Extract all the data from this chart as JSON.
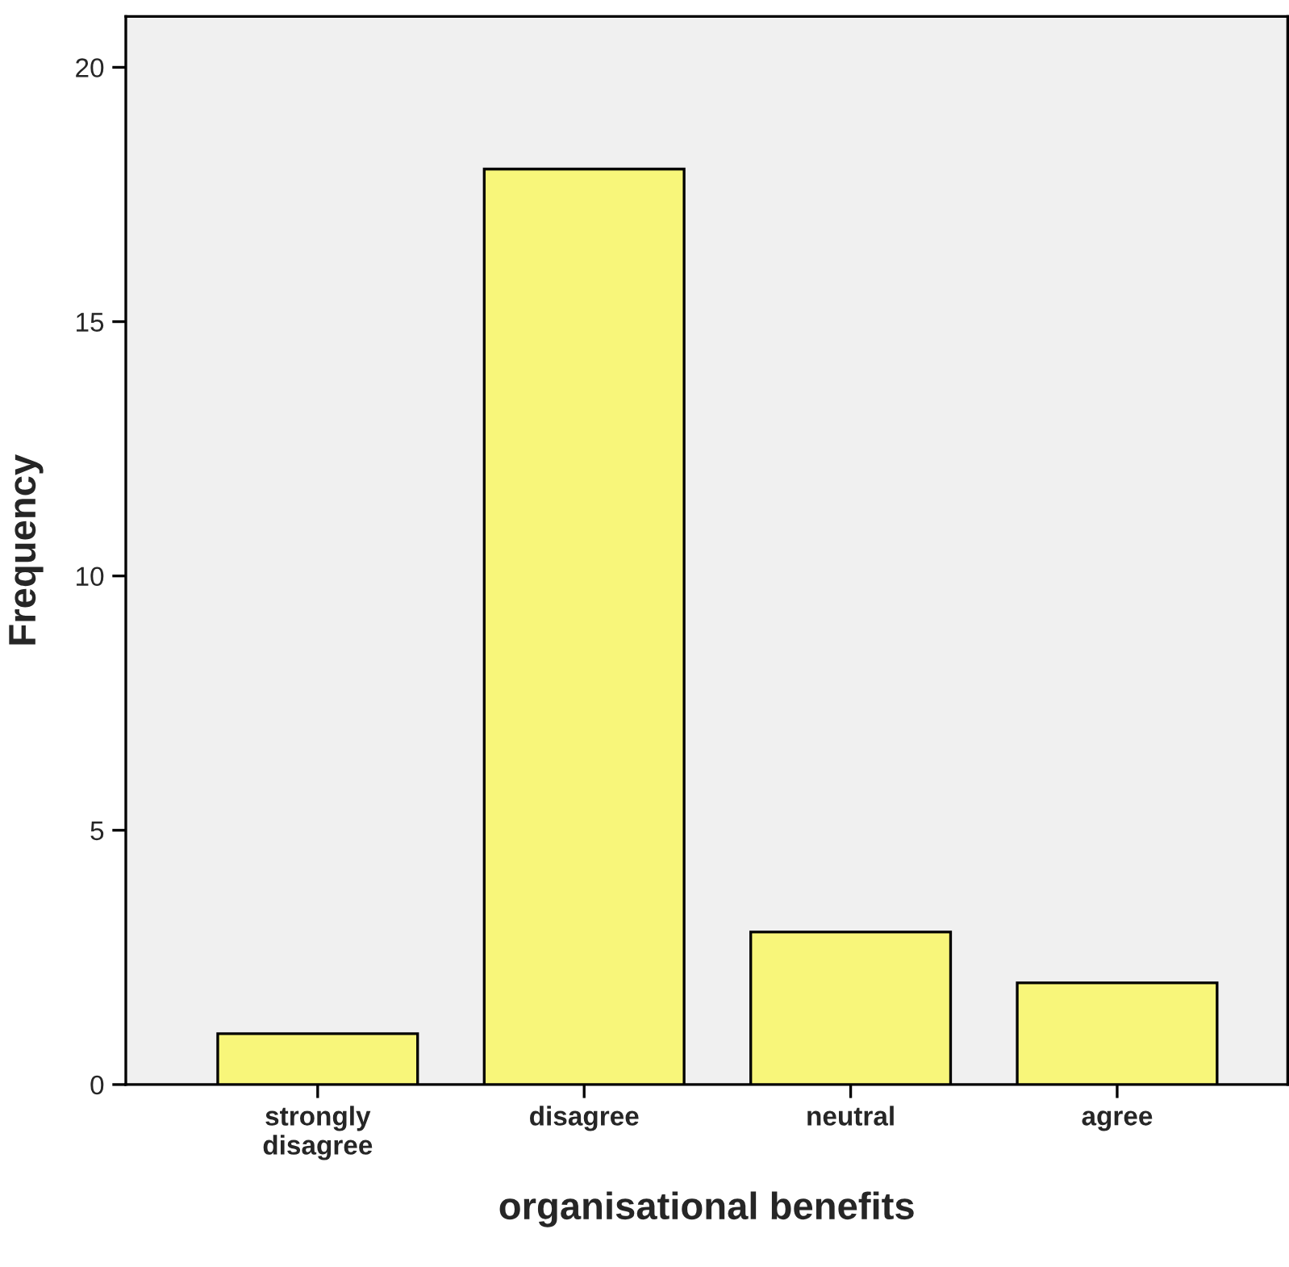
{
  "chart_data": {
    "type": "bar",
    "xlabel": "organisational benefits",
    "ylabel": "Frequency",
    "categories": [
      "strongly\ndisagree",
      "disagree",
      "neutral",
      "agree"
    ],
    "values": [
      1,
      18,
      3,
      2
    ],
    "color": "#f8f67a",
    "ylim": [
      0,
      21
    ],
    "yticks": [
      0,
      5,
      10,
      15,
      20
    ],
    "grid": false,
    "legend": false
  }
}
